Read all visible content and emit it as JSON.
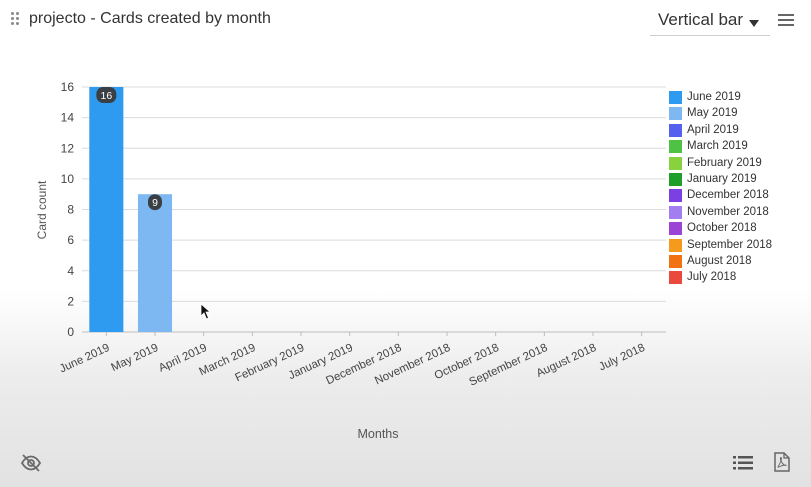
{
  "header": {
    "title": "projecto - Cards created by month",
    "chart_type_selected": "Vertical bar"
  },
  "icons": {
    "drag": "drag-handle-icon",
    "menu": "hamburger-menu-icon",
    "hide": "eye-off-icon",
    "list": "list-icon",
    "pdf": "pdf-export-icon"
  },
  "chart_data": {
    "type": "bar",
    "categories": [
      "June 2019",
      "May 2019",
      "April 2019",
      "March 2019",
      "February 2019",
      "January 2019",
      "December 2018",
      "November 2018",
      "October 2018",
      "September 2018",
      "August 2018",
      "July 2018"
    ],
    "values": [
      16,
      9,
      0,
      0,
      0,
      0,
      0,
      0,
      0,
      0,
      0,
      0
    ],
    "colors": [
      "#2f9bf0",
      "#7eb8f2",
      "#5560ee",
      "#4fc244",
      "#88d23e",
      "#1f9e2a",
      "#7b3fe4",
      "#a27ef0",
      "#9b45d6",
      "#f59a1c",
      "#f27212",
      "#ea4a3e"
    ],
    "data_labels": [
      "16",
      "9",
      "",
      "",
      "",
      "",
      "",
      "",
      "",
      "",
      "",
      ""
    ],
    "xlabel": "Months",
    "ylabel": "Card count",
    "ylim": [
      0,
      16
    ],
    "yticks": [
      "0",
      "2",
      "4",
      "6",
      "8",
      "10",
      "12",
      "14",
      "16"
    ],
    "grid": true,
    "legend_position": "right"
  }
}
